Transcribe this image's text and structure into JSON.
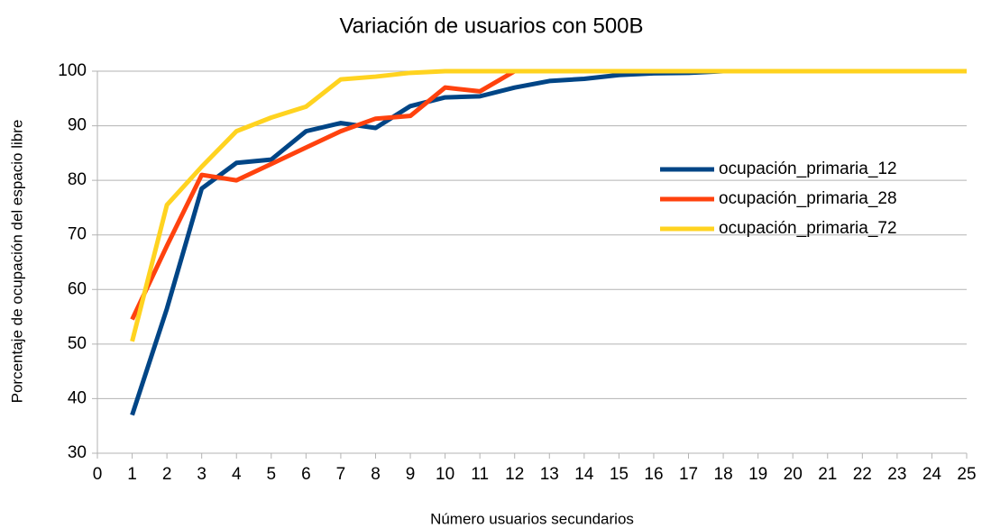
{
  "chart_data": {
    "type": "line",
    "title": "Variación de usuarios con 500B",
    "x_label": "Número usuarios secundarios",
    "y_label": "Porcentaje de ocupación del espacio libre",
    "x": [
      1,
      2,
      3,
      4,
      5,
      6,
      7,
      8,
      9,
      10,
      11,
      12,
      13,
      14,
      15,
      16,
      17,
      18,
      19,
      20,
      21,
      22,
      23,
      24,
      25
    ],
    "series": [
      {
        "name": "ocupación_primaria_12",
        "color": "#004586",
        "values": [
          37,
          56.5,
          78.5,
          83.2,
          83.8,
          89,
          90.5,
          89.6,
          93.6,
          95.2,
          95.4,
          97,
          98.2,
          98.6,
          99.3,
          99.6,
          99.7,
          100,
          100,
          100,
          100,
          100,
          100,
          100,
          100
        ]
      },
      {
        "name": "ocupación_primaria_28",
        "color": "#ff420e",
        "values": [
          54.5,
          68,
          81,
          80,
          83,
          86,
          89,
          91.3,
          91.8,
          97,
          96.3,
          100,
          100,
          100,
          100,
          100,
          100,
          100,
          100,
          100,
          100,
          100,
          100,
          100,
          100
        ]
      },
      {
        "name": "ocupación_primaria_72",
        "color": "#ffd320",
        "values": [
          50.5,
          75.5,
          82.5,
          89,
          91.5,
          93.5,
          98.5,
          99,
          99.7,
          100,
          100,
          100,
          100,
          100,
          100,
          100,
          100,
          100,
          100,
          100,
          100,
          100,
          100,
          100,
          100
        ]
      }
    ],
    "xlim": [
      0,
      25
    ],
    "xticks": [
      0,
      1,
      2,
      3,
      4,
      5,
      6,
      7,
      8,
      9,
      10,
      11,
      12,
      13,
      14,
      15,
      16,
      17,
      18,
      19,
      20,
      21,
      22,
      23,
      24,
      25
    ],
    "ylim": [
      30,
      100
    ],
    "yticks": [
      30,
      40,
      50,
      60,
      70,
      80,
      90,
      100
    ],
    "grid": true,
    "legend": "right"
  }
}
